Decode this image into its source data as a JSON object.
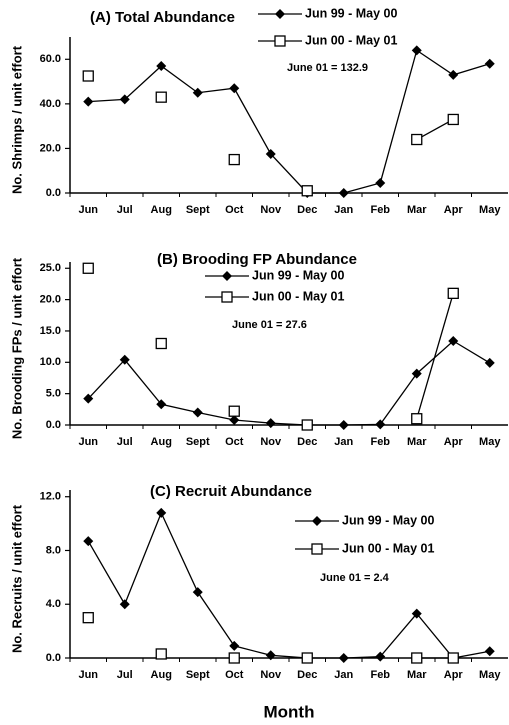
{
  "chart_data": [
    {
      "type": "line",
      "title": "(A) Total Abundance",
      "ylabel": "No. Shrimps / unit effort",
      "annotation": "June 01 = 132.9",
      "categories": [
        "Jun",
        "Jul",
        "Aug",
        "Sept",
        "Oct",
        "Nov",
        "Dec",
        "Jan",
        "Feb",
        "Mar",
        "Apr",
        "May"
      ],
      "ylim": [
        0,
        70
      ],
      "yticks": [
        {
          "value": 0,
          "label": "0.0"
        },
        {
          "value": 20,
          "label": "20.0"
        },
        {
          "value": 40,
          "label": "40.0"
        },
        {
          "value": 60,
          "label": "60.0"
        }
      ],
      "series": [
        {
          "name": "Jun 99 - May 00",
          "color": "#000000",
          "marker": "diamond",
          "values": [
            41,
            42,
            57,
            45,
            47,
            17.5,
            0,
            0,
            4.5,
            64,
            53,
            58
          ]
        },
        {
          "name": "Jun 00 - May 01",
          "color": "#000000",
          "marker": "square",
          "values": [
            52.5,
            null,
            43,
            null,
            15,
            null,
            1,
            null,
            null,
            24,
            33,
            null
          ]
        }
      ]
    },
    {
      "type": "line",
      "title": "(B) Brooding FP Abundance",
      "ylabel": "No. Brooding FPs / unit effort",
      "annotation": "June 01 = 27.6",
      "categories": [
        "Jun",
        "Jul",
        "Aug",
        "Sept",
        "Oct",
        "Nov",
        "Dec",
        "Jan",
        "Feb",
        "Mar",
        "Apr",
        "May"
      ],
      "ylim": [
        0,
        26
      ],
      "yticks": [
        {
          "value": 0,
          "label": "0.0"
        },
        {
          "value": 5,
          "label": "5.0"
        },
        {
          "value": 10,
          "label": "10.0"
        },
        {
          "value": 15,
          "label": "15.0"
        },
        {
          "value": 20,
          "label": "20.0"
        },
        {
          "value": 25,
          "label": "25.0"
        }
      ],
      "series": [
        {
          "name": "Jun 99 - May 00",
          "color": "#000000",
          "marker": "diamond",
          "values": [
            4.2,
            10.4,
            3.3,
            2,
            0.8,
            0.3,
            0,
            0,
            0.1,
            8.2,
            13.4,
            9.9
          ]
        },
        {
          "name": "Jun 00 - May 01",
          "color": "#000000",
          "marker": "square",
          "values": [
            25,
            null,
            13,
            null,
            2.2,
            null,
            0,
            null,
            null,
            1,
            21,
            null
          ]
        }
      ]
    },
    {
      "type": "line",
      "title": "(C) Recruit Abundance",
      "ylabel": "No. Recruits / unit effort",
      "annotation": "June 01 = 2.4",
      "xlabel": "Month",
      "categories": [
        "Jun",
        "Jul",
        "Aug",
        "Sept",
        "Oct",
        "Nov",
        "Dec",
        "Jan",
        "Feb",
        "Mar",
        "Apr",
        "May"
      ],
      "ylim": [
        0,
        12.5
      ],
      "yticks": [
        {
          "value": 0,
          "label": "0.0"
        },
        {
          "value": 4,
          "label": "4.0"
        },
        {
          "value": 8,
          "label": "8.0"
        },
        {
          "value": 12,
          "label": "12.0"
        }
      ],
      "series": [
        {
          "name": "Jun 99 - May 00",
          "color": "#000000",
          "marker": "diamond",
          "values": [
            8.7,
            4,
            10.8,
            4.9,
            0.9,
            0.2,
            0,
            0,
            0.1,
            3.3,
            0,
            0.5
          ]
        },
        {
          "name": "Jun 00 - May 01",
          "color": "#000000",
          "marker": "square",
          "values": [
            3,
            null,
            0.3,
            null,
            0,
            null,
            0,
            null,
            null,
            0,
            0,
            null
          ]
        }
      ]
    }
  ]
}
